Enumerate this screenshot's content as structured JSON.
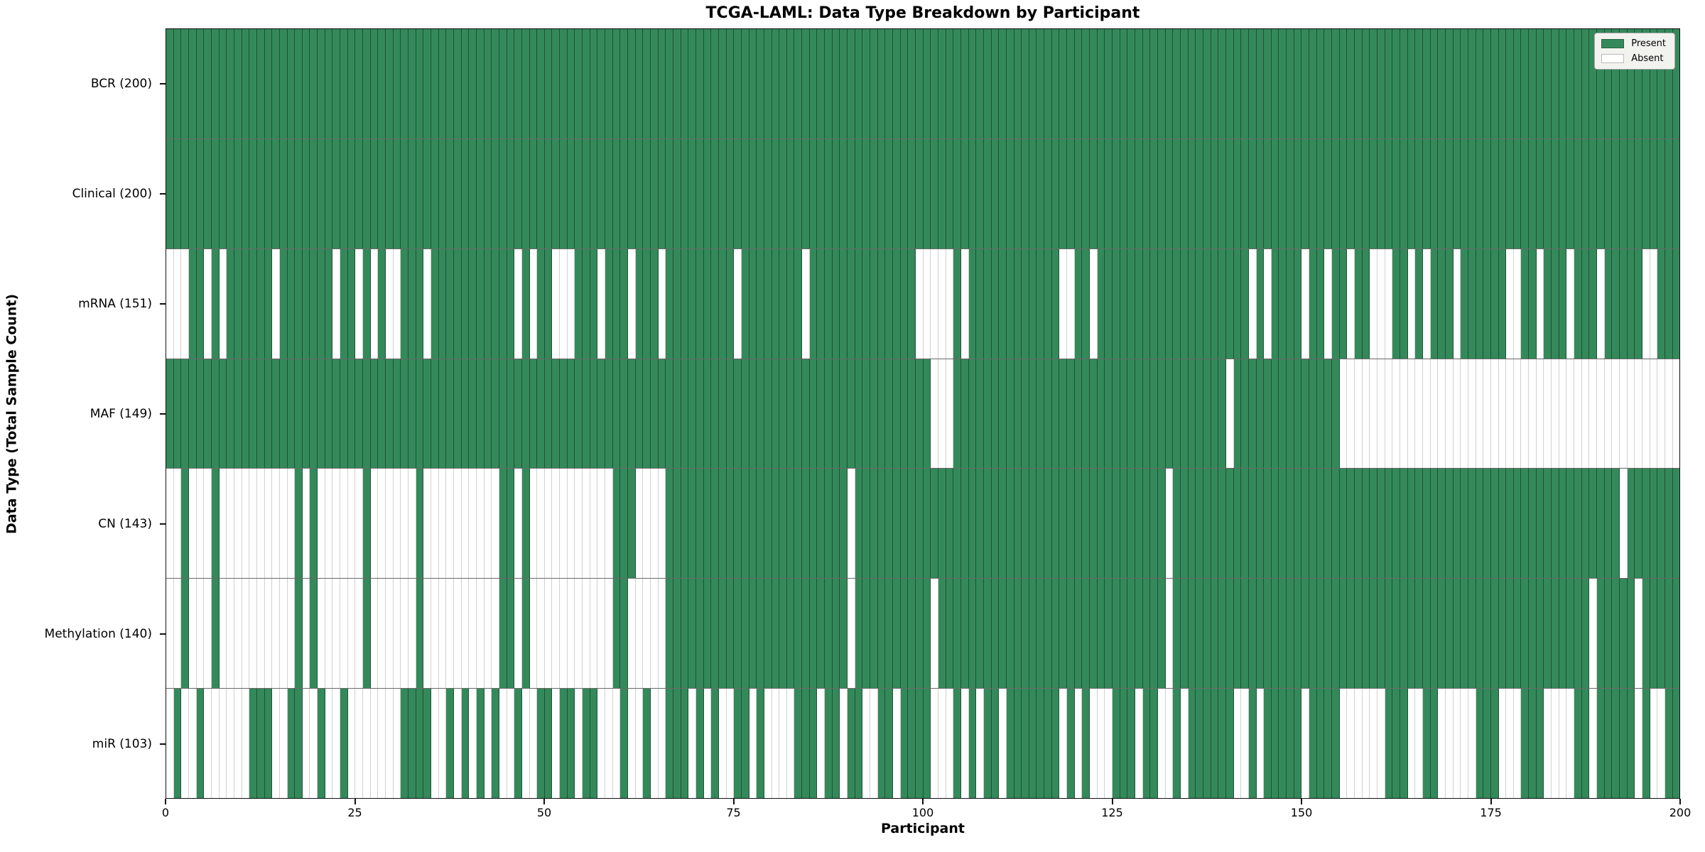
{
  "header": {
    "title": "TCGA-LAML: Data Type Breakdown by Participant"
  },
  "axes": {
    "x_label": "Participant",
    "y_label": "Data Type (Total Sample Count)"
  },
  "legend": {
    "items": [
      {
        "label": "Present",
        "color": "#34895a",
        "border": "#24663f"
      },
      {
        "label": "Absent",
        "color": "#ffffff",
        "border": "#b9b9b9"
      }
    ]
  },
  "colors": {
    "present": "#34895a",
    "absent": "#ffffff",
    "plot_border": "#111111",
    "legend_bg": "#f2f2ee"
  },
  "chart_data": {
    "type": "heatmap",
    "title": "TCGA-LAML: Data Type Breakdown by Participant",
    "xlabel": "Participant",
    "ylabel": "Data Type (Total Sample Count)",
    "x_range": [
      0,
      200
    ],
    "x_ticks": [
      0,
      25,
      50,
      75,
      100,
      125,
      150,
      175,
      200
    ],
    "n_participants": 200,
    "value_encoding": {
      "1": "Present",
      "0": "Absent"
    },
    "grid": false,
    "legend_position": "upper right",
    "rows": [
      {
        "label": "BCR (200)",
        "data_type": "BCR",
        "total": 200,
        "presence": "11111111111111111111111111111111111111111111111111111111111111111111111111111111111111111111111111111111111111111111111111111111111111111111111111111111111111111111111111111111111111111111111111111111"
      },
      {
        "label": "Clinical (200)",
        "data_type": "Clinical",
        "total": 200,
        "presence": "11111111111111111111111111111111111111111111111111111111111111111111111111111111111111111111111111111111111111111111111111111111111111111111111111111111111111111111111111111111111111111111111111111111"
      },
      {
        "label": "mRNA (151)",
        "data_type": "mRNA",
        "total": 151,
        "presence": "00011010111111011111110110101001110111111111110101100011101110111011111111101111111101111111111111100000101111111111110011011111111111111111111010111101101101100011010111011111100110111011101111100111 11"
      },
      {
        "label": "MAF (149)",
        "data_type": "MAF",
        "total": 149,
        "presence": "11111111111111111111111111111111111111111111111111111111111111111111111111111111111111111111111111111000111111111111111111111111111111111111011111111111111000000000000000000000000000000000000000000000"
      },
      {
        "label": "CN (143)",
        "data_type": "CN",
        "total": 143,
        "presence": "00100010000000000101000000100000010000000000110100000000000111000011111111111111111111111101111111111111111111111111111111111111111101111111111111111111111111111111111111111111111111111111111101111111 11"
      },
      {
        "label": "Methylation (140)",
        "data_type": "Methylation",
        "total": 140,
        "presence": "00100010000000000101000000100000010000000000110100000000000110000011111111111111111111111101111111111011111111111111111111111111111101111111111111111111111111111111111111111111111111111111011111011111 1"
      },
      {
        "label": "miR (103)",
        "data_type": "miR",
        "total": 103,
        "presence": "01001000000111001100100100000001111001010101001001101101100010010011101010011010000111011011001101111000101011011111110101000111011001011111100101111101111000000111001100000111000111000011011111010011"
      }
    ]
  }
}
